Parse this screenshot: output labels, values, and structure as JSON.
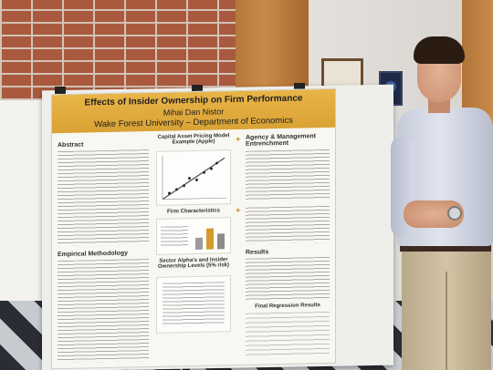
{
  "poster": {
    "title": "Effects of Insider Ownership on Firm Performance",
    "author": "Mihai Dan Nistor",
    "affiliation": "Wake Forest University – Department of Economics",
    "sections": {
      "abstract": "Abstract",
      "empirical": "Empirical Methodology",
      "agency": "Agency & Management Entrenchment",
      "results": "Results",
      "caption_capm": "Capital Asset Pricing Model Example (Apple)",
      "caption_firm": "Firm Characteristics",
      "caption_sector": "Sector Alpha's and Insider Ownership Levels (5% risk)",
      "caption_regression": "Final Regression Results"
    },
    "chart_data": {
      "type": "bar",
      "values": [
        0.42,
        0.78,
        0.58
      ]
    }
  },
  "colors": {
    "poster_header": "#e1ab3e",
    "shirt": "#d5d8e4"
  }
}
